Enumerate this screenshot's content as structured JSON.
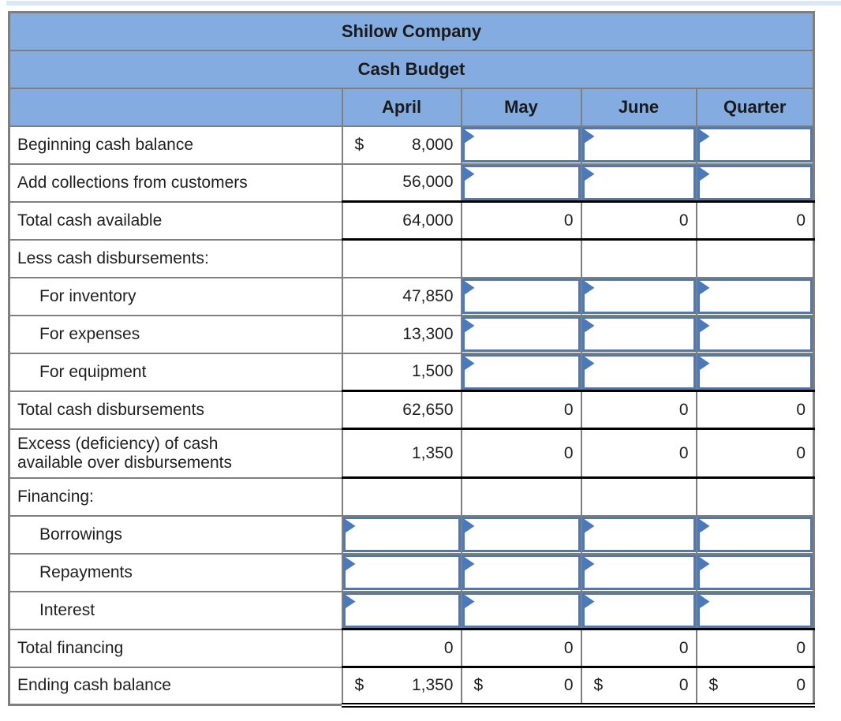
{
  "page": {
    "top_strip_color": "#DBE7F5",
    "background": "#FFFFFF"
  },
  "colors": {
    "header_fill": "#84ACE0",
    "grid_line": "#7F7F7F",
    "black_rule": "#000000",
    "input_border": "#4A79BC",
    "text": "#1A1A1A"
  },
  "table": {
    "title": "Shilow Company",
    "subtitle": "Cash Budget",
    "columns": [
      "April",
      "May",
      "June",
      "Quarter"
    ],
    "rows": [
      {
        "label": "Beginning cash balance",
        "indent": 0,
        "cells": [
          {
            "type": "value",
            "prefix": "$",
            "text": "8,000"
          },
          {
            "type": "input"
          },
          {
            "type": "input"
          },
          {
            "type": "input"
          }
        ]
      },
      {
        "label": "Add collections from customers",
        "indent": 0,
        "cells": [
          {
            "type": "value",
            "text": "56,000"
          },
          {
            "type": "input"
          },
          {
            "type": "input"
          },
          {
            "type": "input"
          }
        ]
      },
      {
        "label": "Total cash available",
        "indent": 0,
        "black_top": true,
        "black_bottom": true,
        "cells": [
          {
            "type": "value",
            "text": "64,000"
          },
          {
            "type": "value",
            "text": "0"
          },
          {
            "type": "value",
            "text": "0"
          },
          {
            "type": "value",
            "text": "0"
          }
        ]
      },
      {
        "label": "Less cash disbursements:",
        "indent": 0,
        "cells": [
          {
            "type": "empty"
          },
          {
            "type": "empty"
          },
          {
            "type": "empty"
          },
          {
            "type": "empty"
          }
        ]
      },
      {
        "label": "For inventory",
        "indent": 1,
        "cells": [
          {
            "type": "value",
            "text": "47,850"
          },
          {
            "type": "input"
          },
          {
            "type": "input"
          },
          {
            "type": "input"
          }
        ]
      },
      {
        "label": "For expenses",
        "indent": 1,
        "cells": [
          {
            "type": "value",
            "text": "13,300"
          },
          {
            "type": "input"
          },
          {
            "type": "input"
          },
          {
            "type": "input"
          }
        ]
      },
      {
        "label": "For equipment",
        "indent": 1,
        "cells": [
          {
            "type": "value",
            "text": "1,500"
          },
          {
            "type": "input"
          },
          {
            "type": "input"
          },
          {
            "type": "input"
          }
        ]
      },
      {
        "label": "Total cash disbursements",
        "indent": 0,
        "black_top": true,
        "black_bottom": true,
        "cells": [
          {
            "type": "value",
            "text": "62,650"
          },
          {
            "type": "value",
            "text": "0"
          },
          {
            "type": "value",
            "text": "0"
          },
          {
            "type": "value",
            "text": "0"
          }
        ]
      },
      {
        "label": "Excess (deficiency) of cash\navailable over disbursements",
        "indent": 0,
        "tall": true,
        "black_bottom": true,
        "cells": [
          {
            "type": "value",
            "text": "1,350"
          },
          {
            "type": "value",
            "text": "0"
          },
          {
            "type": "value",
            "text": "0"
          },
          {
            "type": "value",
            "text": "0"
          }
        ]
      },
      {
        "label": "Financing:",
        "indent": 0,
        "cells": [
          {
            "type": "empty"
          },
          {
            "type": "empty"
          },
          {
            "type": "empty"
          },
          {
            "type": "empty"
          }
        ]
      },
      {
        "label": "Borrowings",
        "indent": 1,
        "cells": [
          {
            "type": "input"
          },
          {
            "type": "input"
          },
          {
            "type": "input"
          },
          {
            "type": "input"
          }
        ]
      },
      {
        "label": "Repayments",
        "indent": 1,
        "cells": [
          {
            "type": "input"
          },
          {
            "type": "input"
          },
          {
            "type": "input"
          },
          {
            "type": "input"
          }
        ]
      },
      {
        "label": "Interest",
        "indent": 1,
        "cells": [
          {
            "type": "input"
          },
          {
            "type": "input"
          },
          {
            "type": "input"
          },
          {
            "type": "input"
          }
        ]
      },
      {
        "label": "Total financing",
        "indent": 0,
        "black_top": true,
        "black_bottom": true,
        "cells": [
          {
            "type": "value",
            "text": "0"
          },
          {
            "type": "value",
            "text": "0"
          },
          {
            "type": "value",
            "text": "0"
          },
          {
            "type": "value",
            "text": "0"
          }
        ]
      },
      {
        "label": "Ending cash balance",
        "indent": 0,
        "double_bottom": true,
        "cells": [
          {
            "type": "value",
            "prefix": "$",
            "text": "1,350"
          },
          {
            "type": "value",
            "prefix": "$",
            "text": "0"
          },
          {
            "type": "value",
            "prefix": "$",
            "text": "0"
          },
          {
            "type": "value",
            "prefix": "$",
            "text": "0"
          }
        ]
      }
    ]
  }
}
